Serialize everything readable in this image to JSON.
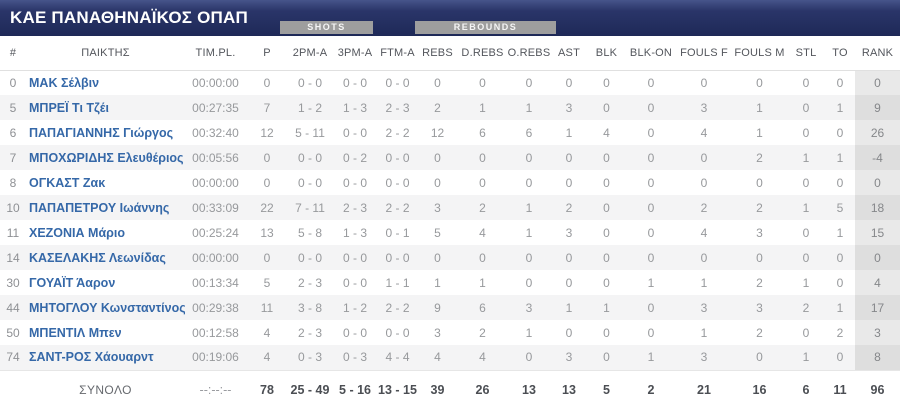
{
  "header": {
    "team_title": "ΚΑΕ ΠΑΝΑΘΗΝΑΪΚΟΣ ΟΠΑΠ",
    "shots_badge": "SHOTS",
    "rebounds_badge": "REBOUNDS"
  },
  "table": {
    "columns": [
      {
        "key": "number",
        "label": "#"
      },
      {
        "key": "player",
        "label": "ΠΑΙΚΤΗΣ"
      },
      {
        "key": "time_played",
        "label": "TIM.PL."
      },
      {
        "key": "points",
        "label": "P"
      },
      {
        "key": "2pm_a",
        "label": "2PM-A"
      },
      {
        "key": "3pm_a",
        "label": "3PM-A"
      },
      {
        "key": "ftm_a",
        "label": "FTM-A"
      },
      {
        "key": "rebs",
        "label": "REBS"
      },
      {
        "key": "d_rebs",
        "label": "D.REBS"
      },
      {
        "key": "o_rebs",
        "label": "O.REBS"
      },
      {
        "key": "ast",
        "label": "AST"
      },
      {
        "key": "blk",
        "label": "BLK"
      },
      {
        "key": "blk_on",
        "label": "BLK-ON"
      },
      {
        "key": "fouls_f",
        "label": "FOULS F"
      },
      {
        "key": "fouls_m",
        "label": "FOULS M"
      },
      {
        "key": "stl",
        "label": "STL"
      },
      {
        "key": "to",
        "label": "TO"
      },
      {
        "key": "rank",
        "label": "RANK"
      }
    ],
    "rows": [
      {
        "number": "0",
        "player": "ΜΑΚ Σέλβιν",
        "time": "00:00:00",
        "stats": [
          "0",
          "0 - 0",
          "0 - 0",
          "0 - 0",
          "0",
          "0",
          "0",
          "0",
          "0",
          "0",
          "0",
          "0",
          "0",
          "0",
          "0"
        ]
      },
      {
        "number": "5",
        "player": "ΜΠΡΕΪ Τι Τζέι",
        "time": "00:27:35",
        "stats": [
          "7",
          "1 - 2",
          "1 - 3",
          "2 - 3",
          "2",
          "1",
          "1",
          "3",
          "0",
          "0",
          "3",
          "1",
          "0",
          "1",
          "9"
        ]
      },
      {
        "number": "6",
        "player": "ΠΑΠΑΓΙΑΝΝΗΣ Γιώργος",
        "time": "00:32:40",
        "stats": [
          "12",
          "5 - 11",
          "0 - 0",
          "2 - 2",
          "12",
          "6",
          "6",
          "1",
          "4",
          "0",
          "4",
          "1",
          "0",
          "0",
          "26"
        ]
      },
      {
        "number": "7",
        "player": "ΜΠΟΧΩΡΙΔΗΣ Ελευθέριος",
        "time": "00:05:56",
        "stats": [
          "0",
          "0 - 0",
          "0 - 2",
          "0 - 0",
          "0",
          "0",
          "0",
          "0",
          "0",
          "0",
          "0",
          "2",
          "1",
          "1",
          "-4"
        ]
      },
      {
        "number": "8",
        "player": "ΟΓΚΑΣΤ Ζακ",
        "time": "00:00:00",
        "stats": [
          "0",
          "0 - 0",
          "0 - 0",
          "0 - 0",
          "0",
          "0",
          "0",
          "0",
          "0",
          "0",
          "0",
          "0",
          "0",
          "0",
          "0"
        ]
      },
      {
        "number": "10",
        "player": "ΠΑΠΑΠΕΤΡΟΥ Ιωάννης",
        "time": "00:33:09",
        "stats": [
          "22",
          "7 - 11",
          "2 - 3",
          "2 - 2",
          "3",
          "2",
          "1",
          "2",
          "0",
          "0",
          "2",
          "2",
          "1",
          "5",
          "18"
        ]
      },
      {
        "number": "11",
        "player": "ΧΕΖΟΝΙΑ Μάριο",
        "time": "00:25:24",
        "stats": [
          "13",
          "5 - 8",
          "1 - 3",
          "0 - 1",
          "5",
          "4",
          "1",
          "3",
          "0",
          "0",
          "4",
          "3",
          "0",
          "1",
          "15"
        ]
      },
      {
        "number": "14",
        "player": "ΚΑΣΕΛΑΚΗΣ Λεωνίδας",
        "time": "00:00:00",
        "stats": [
          "0",
          "0 - 0",
          "0 - 0",
          "0 - 0",
          "0",
          "0",
          "0",
          "0",
          "0",
          "0",
          "0",
          "0",
          "0",
          "0",
          "0"
        ]
      },
      {
        "number": "30",
        "player": "ΓΟΥΑΪΤ Άαρον",
        "time": "00:13:34",
        "stats": [
          "5",
          "2 - 3",
          "0 - 0",
          "1 - 1",
          "1",
          "1",
          "0",
          "0",
          "0",
          "1",
          "1",
          "2",
          "1",
          "0",
          "4"
        ]
      },
      {
        "number": "44",
        "player": "ΜΗΤΟΓΛΟΥ Κωνσταντίνος",
        "time": "00:29:38",
        "stats": [
          "11",
          "3 - 8",
          "1 - 2",
          "2 - 2",
          "9",
          "6",
          "3",
          "1",
          "1",
          "0",
          "3",
          "3",
          "2",
          "1",
          "17"
        ]
      },
      {
        "number": "50",
        "player": "ΜΠΕΝΤΙΛ Μπεν",
        "time": "00:12:58",
        "stats": [
          "4",
          "2 - 3",
          "0 - 0",
          "0 - 0",
          "3",
          "2",
          "1",
          "0",
          "0",
          "0",
          "1",
          "2",
          "0",
          "2",
          "3"
        ]
      },
      {
        "number": "74",
        "player": "ΣΑΝΤ-ΡΟΣ Χάουαρντ",
        "time": "00:19:06",
        "stats": [
          "4",
          "0 - 3",
          "0 - 3",
          "4 - 4",
          "4",
          "4",
          "0",
          "3",
          "0",
          "1",
          "3",
          "0",
          "1",
          "0",
          "8"
        ]
      }
    ],
    "totals": {
      "label": "ΣΥΝΟΛΟ",
      "time": "--:--:--",
      "stats": [
        "78",
        "25 - 49",
        "5 - 16",
        "13 - 15",
        "39",
        "26",
        "13",
        "13",
        "5",
        "2",
        "21",
        "16",
        "6",
        "11",
        "96"
      ]
    }
  },
  "colors": {
    "navy_bar": "#222d5f",
    "badge_gray": "#9e9e9e",
    "player_name_blue": "#3568a8",
    "rank_column_bg": "#e9e9e9",
    "row_stripe": "#f4f4f5"
  }
}
